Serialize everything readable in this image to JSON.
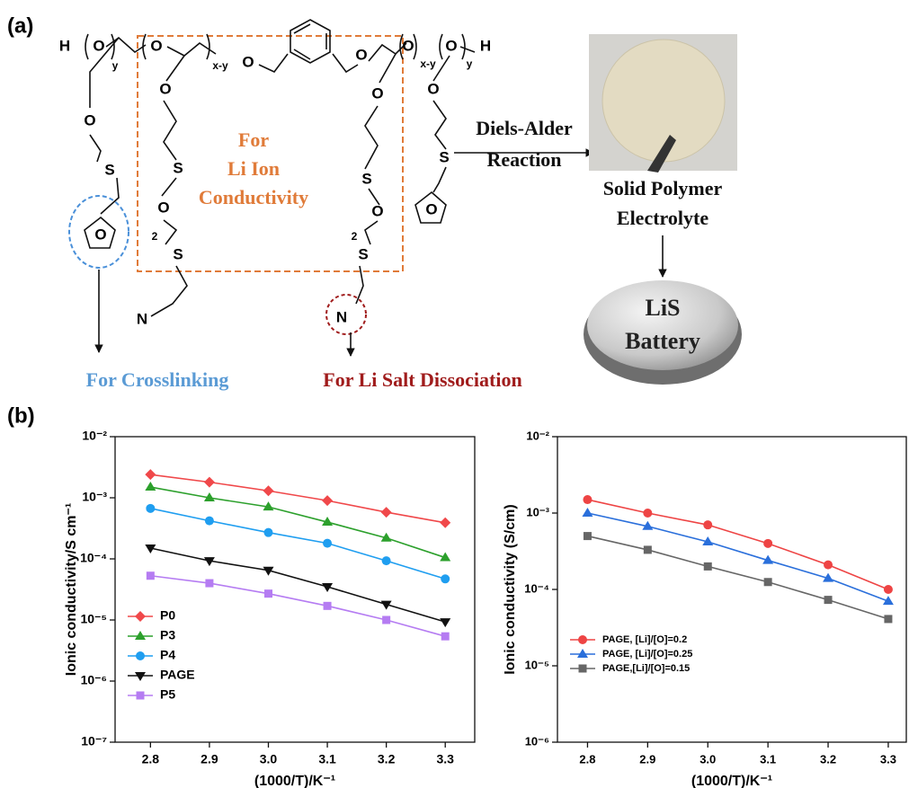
{
  "panel_a": {
    "label": "(a)",
    "box_text": [
      "For",
      "Li Ion",
      "Conductivity"
    ],
    "arrow_text": [
      "Diels-Alder",
      "Reaction"
    ],
    "product": [
      "Solid Polymer",
      "Electrolyte"
    ],
    "battery": [
      "LiS",
      "Battery"
    ],
    "crosslinking": "For Crosslinking",
    "dissociation": "For Li Salt Dissociation",
    "atoms": [
      "H",
      "O",
      "y",
      "O",
      "x-y",
      "O",
      "O",
      "O",
      "x-y",
      "O",
      "y",
      "H",
      "O",
      "S",
      "O",
      "O",
      "S",
      "O",
      "2",
      "S",
      "N",
      "O",
      "S",
      "O",
      "2",
      "S",
      "N",
      "O",
      "S",
      "O"
    ]
  },
  "panel_b": {
    "label": "(b)"
  },
  "chart_data": [
    {
      "type": "line",
      "ylabel": "Ionic conductivity/S cm⁻¹",
      "xlabel": "(1000/T)/K⁻¹",
      "x": [
        2.8,
        2.9,
        3.0,
        3.1,
        3.2,
        3.3
      ],
      "xlim": [
        2.74,
        3.35
      ],
      "xticks": [
        2.8,
        2.9,
        {
          "value": 3.0,
          "label": "3.0"
        },
        3.1,
        3.2,
        3.3
      ],
      "ylim": [
        1e-07,
        0.01
      ],
      "log_y": true,
      "yticks": [
        {
          "value": 1e-07,
          "label": "10⁻⁷"
        },
        {
          "value": 1e-06,
          "label": "10⁻⁶"
        },
        {
          "value": 1e-05,
          "label": "10⁻⁵"
        },
        {
          "value": 0.0001,
          "label": "10⁻⁴"
        },
        {
          "value": 0.001,
          "label": "10⁻³"
        },
        {
          "value": 0.01,
          "label": "10⁻²"
        }
      ],
      "legend": "lower left",
      "series": [
        {
          "name": "P0",
          "color": "#f0484a",
          "marker": "diamond",
          "values": [
            0.0024,
            0.0018,
            0.0013,
            0.0009,
            0.00058,
            0.00039
          ]
        },
        {
          "name": "P3",
          "color": "#2ca02c",
          "marker": "triangle-up",
          "values": [
            0.0015,
            0.001,
            0.00071,
            0.0004,
            0.00022,
            0.000105
          ]
        },
        {
          "name": "P4",
          "color": "#1f9ef0",
          "marker": "circle",
          "values": [
            0.00067,
            0.00042,
            0.00027,
            0.00018,
            9.3e-05,
            4.7e-05
          ]
        },
        {
          "name": "PAGE",
          "color": "#111111",
          "marker": "triangle-down",
          "values": [
            0.00015,
            9.3e-05,
            6.5e-05,
            3.5e-05,
            1.8e-05,
            9.3e-06
          ]
        },
        {
          "name": "P5",
          "color": "#b57cf2",
          "marker": "square",
          "values": [
            5.3e-05,
            4e-05,
            2.7e-05,
            1.7e-05,
            1e-05,
            5.4e-06
          ]
        }
      ]
    },
    {
      "type": "line",
      "ylabel": "Ionic conductivity (S/cm)",
      "xlabel": "(1000/T)/K⁻¹",
      "x": [
        2.8,
        2.9,
        3.0,
        3.1,
        3.2,
        3.3
      ],
      "xlim": [
        2.75,
        3.33
      ],
      "xticks": [
        2.8,
        2.9,
        {
          "value": 3.0,
          "label": "3.0"
        },
        3.1,
        3.2,
        3.3
      ],
      "ylim": [
        1e-06,
        0.01
      ],
      "log_y": true,
      "yticks": [
        {
          "value": 1e-06,
          "label": "10⁻⁶"
        },
        {
          "value": 1e-05,
          "label": "10⁻⁵"
        },
        {
          "value": 0.0001,
          "label": "10⁻⁴"
        },
        {
          "value": 0.001,
          "label": "10⁻³"
        },
        {
          "value": 0.01,
          "label": "10⁻²"
        }
      ],
      "legend": "center left",
      "series": [
        {
          "name": "PAGE, [Li]/[O]=0.2",
          "color": "#ee4444",
          "marker": "circle",
          "values": [
            0.0015,
            0.001,
            0.0007,
            0.0004,
            0.00021,
            0.0001
          ]
        },
        {
          "name": "PAGE, [Li]/[O]=0.25",
          "color": "#2a6fdb",
          "marker": "triangle-up",
          "values": [
            0.001,
            0.00067,
            0.00042,
            0.00024,
            0.00014,
            7e-05
          ]
        },
        {
          "name": "PAGE,[Li]/[O]=0.15",
          "color": "#666666",
          "marker": "square",
          "values": [
            0.0005,
            0.00033,
            0.0002,
            0.000125,
            7.3e-05,
            4.1e-05
          ]
        }
      ]
    }
  ]
}
